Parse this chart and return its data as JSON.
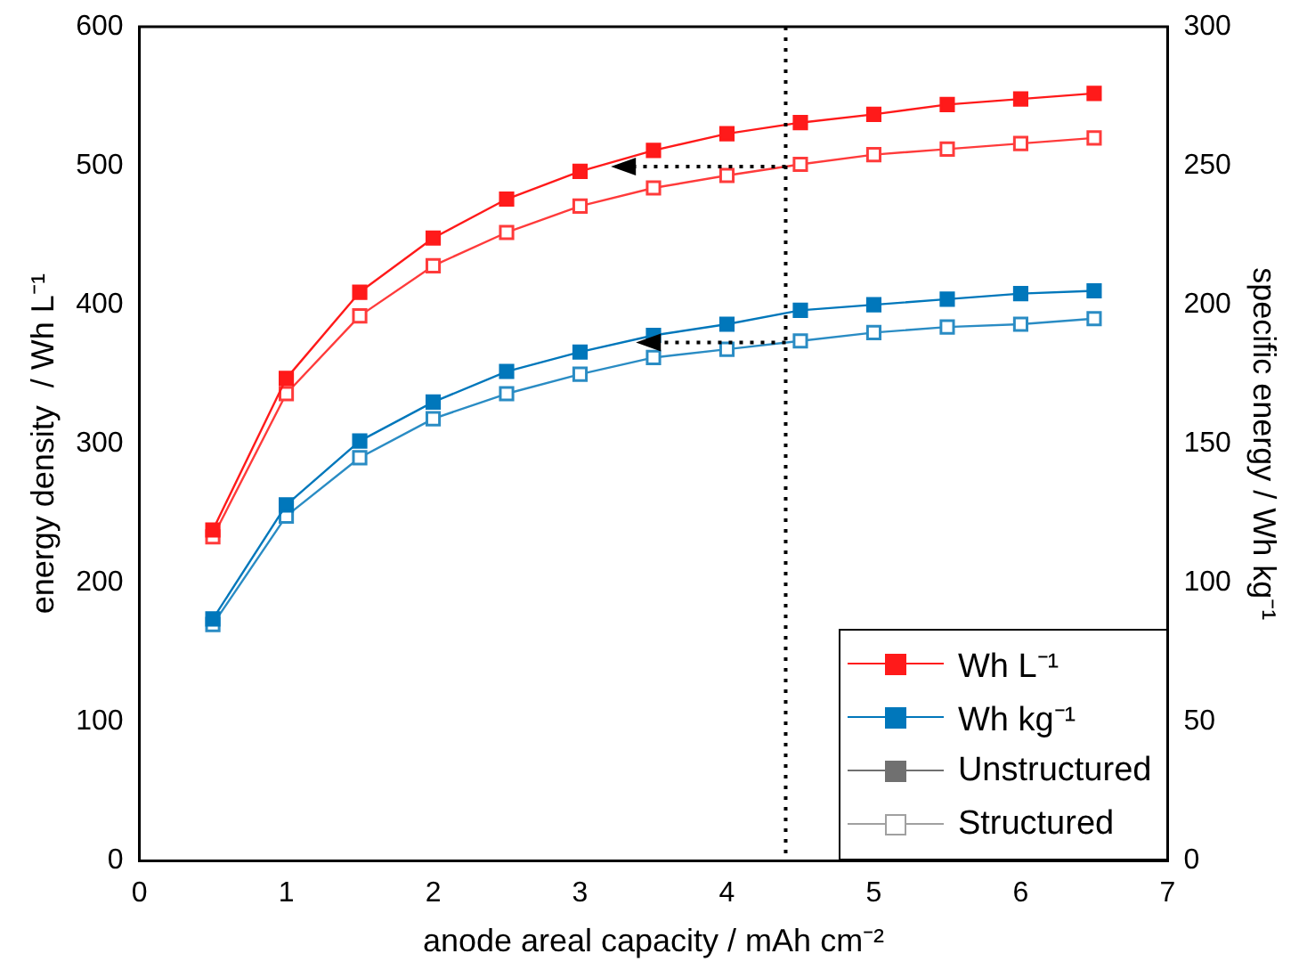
{
  "chart_data": {
    "type": "line",
    "xlabel": "anode areal capacity / mAh cm⁻²",
    "ylabel": "energy density  / Wh L⁻¹",
    "y2label": "specific energy / Wh kg⁻¹",
    "x": [
      0.5,
      1,
      1.5,
      2,
      2.5,
      3,
      3.5,
      4,
      4.5,
      5,
      5.5,
      6,
      6.5
    ],
    "series": [
      {
        "name": "Wh L⁻¹",
        "color": "#ff1a1a",
        "values": [
          238,
          347,
          409,
          448,
          476,
          496,
          511,
          523,
          531,
          537,
          544,
          548,
          552
        ]
      },
      {
        "color": "#ff3b3b",
        "values": [
          233,
          336,
          392,
          428,
          452,
          471,
          484,
          493,
          501,
          508,
          512,
          516,
          520
        ]
      },
      {
        "name": "Wh kg⁻¹",
        "color": "#0077bb",
        "axis": "y2",
        "values": [
          87,
          128,
          151,
          165,
          176,
          183,
          189,
          193,
          198,
          200,
          202,
          204,
          205
        ]
      },
      {
        "color": "#2a8cc4",
        "axis": "y2",
        "values": [
          85,
          124,
          145,
          159,
          168,
          175,
          181,
          184,
          187,
          190,
          192,
          193,
          195
        ]
      },
      {
        "name": "Unstructured",
        "color": "#707070",
        "values": [
          null,
          null,
          null,
          null,
          null,
          null,
          null,
          null,
          null,
          null,
          null,
          null,
          null
        ]
      },
      {
        "name": "Structured",
        "color": "#a0a0a0",
        "values": [
          null,
          null,
          null,
          null,
          null,
          null,
          null,
          null,
          null,
          null,
          null,
          null,
          null
        ]
      }
    ],
    "xlim": [
      0,
      7
    ],
    "xticks": [
      0,
      1,
      2,
      3,
      4,
      5,
      6,
      7
    ],
    "ylim": [
      0,
      600
    ],
    "yticks": [
      0,
      100,
      200,
      300,
      400,
      500,
      600
    ],
    "y2lim": [
      0,
      300
    ],
    "y2ticks": [
      0,
      50,
      100,
      150,
      200,
      250,
      300
    ],
    "ref_lines": [
      {
        "axis": "x",
        "value": 4.4,
        "color": "#000000",
        "line_style": "dotted"
      }
    ],
    "marker": "square",
    "grid": false,
    "legend": "bottom right"
  }
}
